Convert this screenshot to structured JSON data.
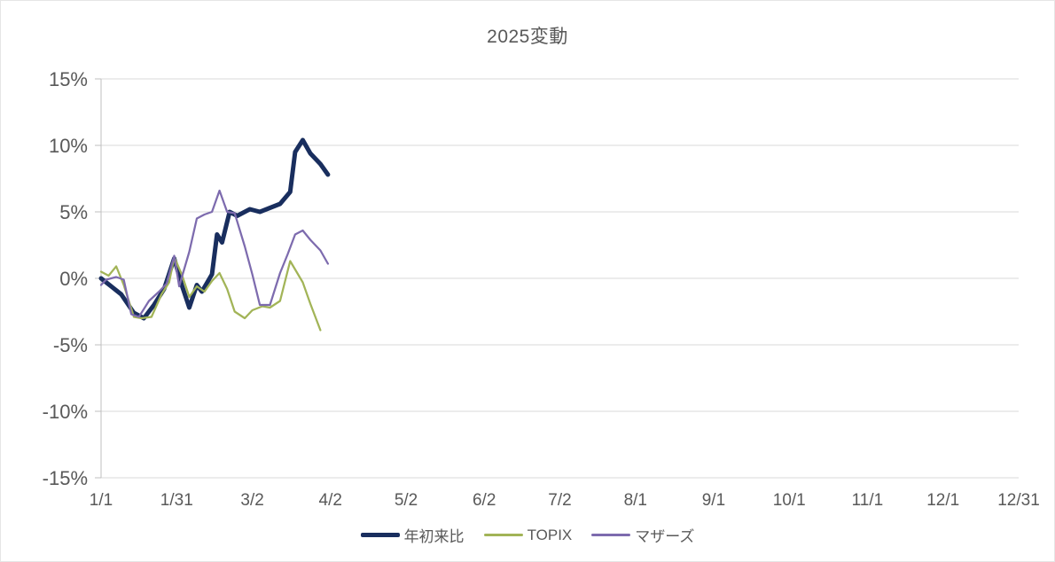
{
  "chart_data": {
    "type": "line",
    "title": "2025変動",
    "xlabel": "",
    "ylabel": "",
    "ylim": [
      -15,
      15
    ],
    "xlim_days": [
      1,
      365
    ],
    "grid": "horizontal",
    "legend_position": "bottom",
    "colors": {
      "gridline": "#d9d9d9",
      "axis_line": "#bfbfbf",
      "tick_text": "#595959",
      "title_text": "#595959",
      "background": "#ffffff"
    },
    "y_ticks": [
      {
        "value": 15,
        "label": "15%"
      },
      {
        "value": 10,
        "label": "10%"
      },
      {
        "value": 5,
        "label": "5%"
      },
      {
        "value": 0,
        "label": "0%"
      },
      {
        "value": -5,
        "label": "-5%"
      },
      {
        "value": -10,
        "label": "-10%"
      },
      {
        "value": -15,
        "label": "-15%"
      }
    ],
    "x_ticks": [
      {
        "day": 1,
        "label": "1/1"
      },
      {
        "day": 31,
        "label": "1/31"
      },
      {
        "day": 61,
        "label": "3/2"
      },
      {
        "day": 92,
        "label": "4/2"
      },
      {
        "day": 122,
        "label": "5/2"
      },
      {
        "day": 153,
        "label": "6/2"
      },
      {
        "day": 183,
        "label": "7/2"
      },
      {
        "day": 213,
        "label": "8/1"
      },
      {
        "day": 244,
        "label": "9/1"
      },
      {
        "day": 274,
        "label": "10/1"
      },
      {
        "day": 305,
        "label": "11/1"
      },
      {
        "day": 335,
        "label": "12/1"
      },
      {
        "day": 365,
        "label": "12/31"
      }
    ],
    "series": [
      {
        "id": "ytd",
        "name": "年初来比",
        "color": "#192e5e",
        "stroke_width": 5,
        "x_days": [
          1,
          3,
          9,
          14,
          18,
          22,
          26,
          30,
          33,
          36,
          39,
          41,
          45,
          47,
          49,
          52,
          55,
          60,
          64,
          68,
          72,
          76,
          78,
          81,
          84,
          88,
          91
        ],
        "values": [
          0,
          -0.3,
          -1.2,
          -2.6,
          -3.0,
          -2.0,
          -0.8,
          1.5,
          -0.5,
          -2.2,
          -0.5,
          -1.0,
          0.3,
          3.3,
          2.7,
          5.0,
          4.7,
          5.2,
          5.0,
          5.3,
          5.6,
          6.5,
          9.5,
          10.4,
          9.4,
          8.6,
          7.8
        ]
      },
      {
        "id": "topix",
        "name": "TOPIX",
        "color": "#a2b457",
        "stroke_width": 2.25,
        "x_days": [
          1,
          4,
          7,
          10,
          14,
          17,
          21,
          25,
          28,
          30,
          33,
          36,
          39,
          42,
          45,
          48,
          51,
          54,
          58,
          61,
          65,
          68,
          72,
          76,
          81,
          84,
          88
        ],
        "values": [
          0.5,
          0.2,
          0.9,
          -0.5,
          -2.9,
          -3.0,
          -2.9,
          -1.2,
          -0.3,
          1.6,
          0.3,
          -1.4,
          -0.6,
          -1.0,
          -0.2,
          0.4,
          -0.8,
          -2.5,
          -3.0,
          -2.4,
          -2.1,
          -2.2,
          -1.7,
          1.3,
          -0.3,
          -1.9,
          -3.9
        ]
      },
      {
        "id": "mothers",
        "name": "マザーズ",
        "color": "#7d6bae",
        "stroke_width": 2.25,
        "x_days": [
          1,
          3,
          7,
          10,
          13,
          16,
          20,
          24,
          27,
          30,
          32,
          36,
          39,
          42,
          45,
          48,
          51,
          54,
          58,
          61,
          64,
          68,
          72,
          75,
          78,
          81,
          84,
          88,
          91
        ],
        "values": [
          -0.5,
          -0.1,
          0.1,
          -0.1,
          -2.7,
          -2.9,
          -1.7,
          -1.0,
          -0.4,
          1.7,
          -0.6,
          2.0,
          4.5,
          4.8,
          5.0,
          6.6,
          5.0,
          4.9,
          2.4,
          0.3,
          -2.0,
          -2.0,
          0.4,
          1.8,
          3.3,
          3.6,
          2.9,
          2.1,
          1.1
        ]
      }
    ]
  }
}
